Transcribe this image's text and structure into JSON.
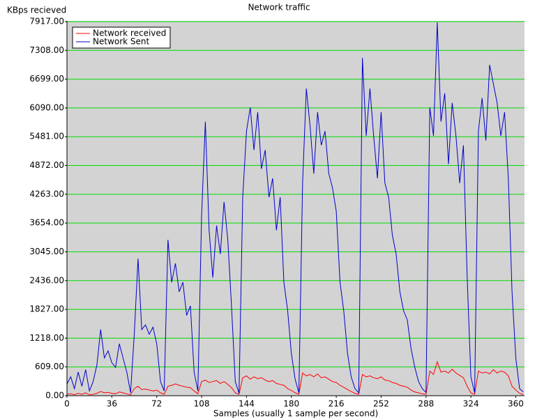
{
  "chart_data": {
    "type": "line",
    "title": "Network traffic",
    "y_label": "KBps recieved",
    "x_label": "Samples (usually 1 sample per second)",
    "x": [
      0,
      3,
      6,
      9,
      12,
      15,
      18,
      21,
      24,
      27,
      30,
      33,
      36,
      39,
      42,
      45,
      48,
      51,
      54,
      57,
      60,
      63,
      66,
      69,
      72,
      75,
      78,
      81,
      84,
      87,
      90,
      93,
      96,
      99,
      102,
      105,
      108,
      111,
      114,
      117,
      120,
      123,
      126,
      129,
      132,
      135,
      138,
      141,
      144,
      147,
      150,
      153,
      156,
      159,
      162,
      165,
      168,
      171,
      174,
      177,
      180,
      183,
      186,
      189,
      192,
      195,
      198,
      201,
      204,
      207,
      210,
      213,
      216,
      219,
      222,
      225,
      228,
      231,
      234,
      237,
      240,
      243,
      246,
      249,
      252,
      255,
      258,
      261,
      264,
      267,
      270,
      273,
      276,
      279,
      282,
      285,
      288,
      291,
      294,
      297,
      300,
      303,
      306,
      309,
      312,
      315,
      318,
      321,
      324,
      327,
      330,
      333,
      336,
      339,
      342,
      345,
      348,
      351,
      354,
      357,
      360,
      363,
      366
    ],
    "series": [
      {
        "name": "Network received",
        "color": "#ff0000",
        "values": [
          30,
          40,
          20,
          50,
          30,
          60,
          20,
          30,
          50,
          90,
          60,
          70,
          50,
          40,
          80,
          60,
          40,
          20,
          150,
          200,
          130,
          140,
          120,
          100,
          120,
          60,
          30,
          200,
          220,
          250,
          220,
          200,
          180,
          170,
          100,
          40,
          300,
          330,
          280,
          300,
          320,
          260,
          300,
          240,
          170,
          60,
          30,
          380,
          420,
          350,
          400,
          360,
          380,
          330,
          300,
          320,
          260,
          240,
          220,
          150,
          110,
          60,
          30,
          480,
          420,
          450,
          400,
          460,
          380,
          400,
          350,
          300,
          280,
          220,
          180,
          130,
          90,
          50,
          30,
          450,
          400,
          420,
          380,
          360,
          400,
          330,
          320,
          280,
          260,
          220,
          200,
          180,
          120,
          80,
          60,
          40,
          30,
          520,
          450,
          720,
          500,
          520,
          480,
          560,
          480,
          430,
          380,
          200,
          60,
          30,
          520,
          480,
          500,
          460,
          550,
          480,
          520,
          500,
          420,
          200,
          120,
          50,
          20
        ]
      },
      {
        "name": "Network Sent",
        "color": "#0000cc",
        "values": [
          250,
          400,
          150,
          500,
          200,
          550,
          100,
          300,
          650,
          1400,
          800,
          950,
          700,
          600,
          1100,
          800,
          500,
          60,
          1300,
          2900,
          1400,
          1500,
          1300,
          1450,
          1100,
          300,
          100,
          3300,
          2400,
          2800,
          2200,
          2400,
          1700,
          1900,
          500,
          100,
          3800,
          5800,
          3500,
          2500,
          3600,
          3000,
          4100,
          3300,
          1900,
          300,
          50,
          4200,
          5600,
          6100,
          5200,
          6000,
          4800,
          5200,
          4200,
          4600,
          3500,
          4200,
          2400,
          1800,
          900,
          350,
          60,
          4500,
          6500,
          5700,
          4700,
          6000,
          5300,
          5600,
          4700,
          4400,
          3900,
          2400,
          1800,
          900,
          400,
          150,
          60,
          7150,
          5500,
          6500,
          5500,
          4600,
          6000,
          4500,
          4200,
          3400,
          3000,
          2200,
          1800,
          1600,
          1000,
          600,
          300,
          150,
          70,
          6100,
          5500,
          7900,
          5800,
          6400,
          4900,
          6200,
          5500,
          4500,
          5300,
          2500,
          400,
          60,
          5600,
          6300,
          5400,
          7000,
          6600,
          6200,
          5500,
          6000,
          4600,
          2200,
          800,
          150,
          80
        ]
      }
    ],
    "xlim": [
      0,
      367
    ],
    "xticks": [
      0,
      36,
      72,
      108,
      144,
      180,
      216,
      252,
      288,
      324,
      360
    ],
    "ylim": [
      0,
      7917
    ],
    "yticks": [
      {
        "value": 0,
        "label": "0.00"
      },
      {
        "value": 609,
        "label": "609.00"
      },
      {
        "value": 1218,
        "label": "1218.00"
      },
      {
        "value": 1827,
        "label": "1827.00"
      },
      {
        "value": 2436,
        "label": "2436.00"
      },
      {
        "value": 3045,
        "label": "3045.00"
      },
      {
        "value": 3654,
        "label": "3654.00"
      },
      {
        "value": 4263,
        "label": "4263.00"
      },
      {
        "value": 4872,
        "label": "4872.00"
      },
      {
        "value": 5481,
        "label": "5481.00"
      },
      {
        "value": 6090,
        "label": "6090.00"
      },
      {
        "value": 6699,
        "label": "6699.00"
      },
      {
        "value": 7308,
        "label": "7308.00"
      },
      {
        "value": 7917,
        "label": "7917.00"
      }
    ],
    "grid": true,
    "grid_color": "#00dd00",
    "plot_background": "#d3d3d3",
    "legend": "upper left"
  }
}
